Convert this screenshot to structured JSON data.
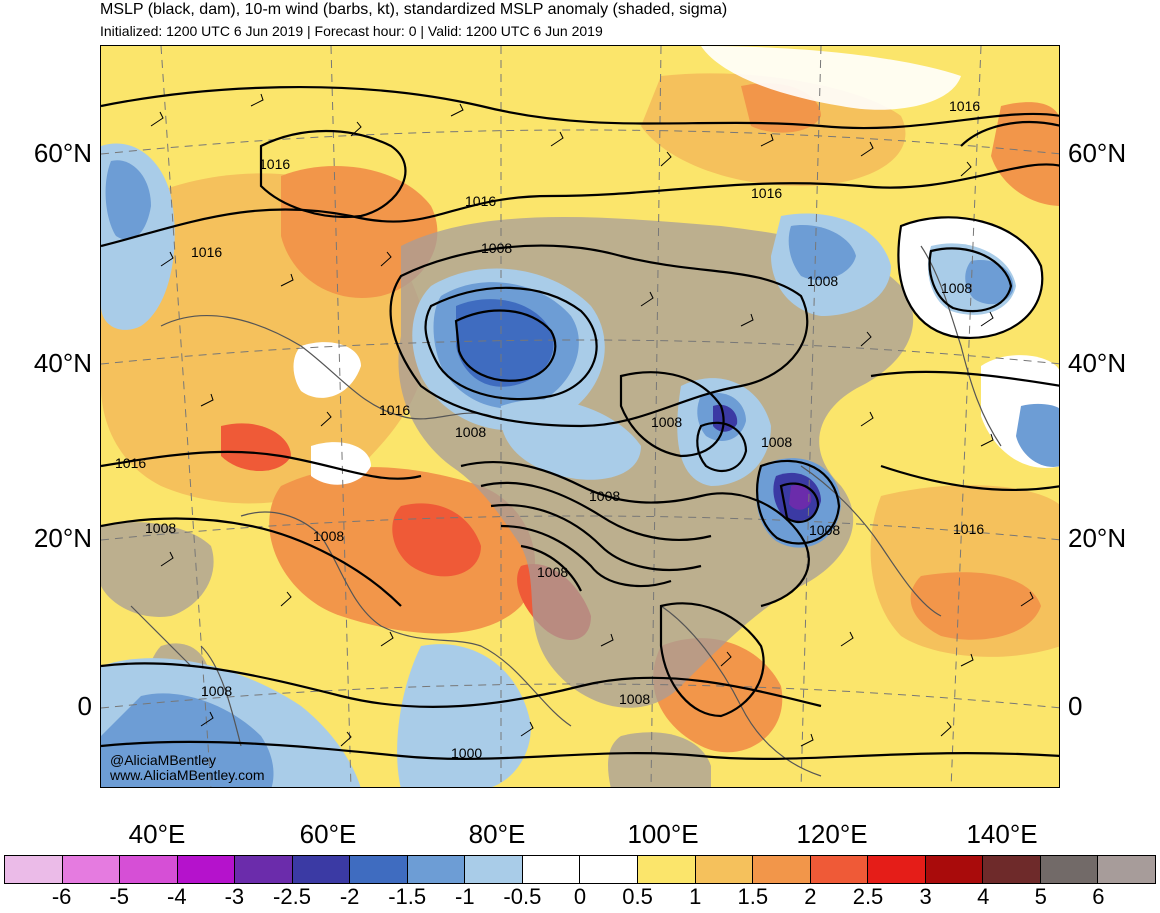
{
  "header": {
    "title": "MSLP (black, dam), 10-m wind (barbs, kt), standardized MSLP anomaly (shaded, sigma)",
    "subtitle": "Initialized: 1200 UTC 6 Jun 2019 | Forecast hour: 0 | Valid: 1200 UTC 6 Jun 2019"
  },
  "map": {
    "lat_labels": [
      "60°N",
      "40°N",
      "20°N",
      "0"
    ],
    "lon_labels": [
      "40°E",
      "60°E",
      "80°E",
      "100°E",
      "120°E",
      "140°E"
    ],
    "contour_labels": [
      "1016",
      "1016",
      "1016",
      "1016",
      "1016",
      "1016",
      "1016",
      "1016",
      "1008",
      "1008",
      "1008",
      "1008",
      "1008",
      "1008",
      "1008",
      "1008",
      "1008",
      "1008",
      "1008",
      "1008",
      "1008",
      "1000"
    ],
    "credit": [
      "@AliciaMBentley",
      "www.AliciaMBentley.com"
    ]
  },
  "colorbar": {
    "labels": [
      "-6",
      "-5",
      "-4",
      "-3",
      "-2.5",
      "-2",
      "-1.5",
      "-1",
      "-0.5",
      "0",
      "0.5",
      "1",
      "1.5",
      "2",
      "2.5",
      "3",
      "4",
      "5",
      "6"
    ],
    "colors": [
      "#ebbbe8",
      "#e57be0",
      "#d64fd6",
      "#b512cc",
      "#6b2cab",
      "#3b3aa4",
      "#3f6cc0",
      "#6d9dd5",
      "#a9cce8",
      "#ffffff",
      "#ffffff",
      "#fbe56b",
      "#f5c15c",
      "#f2964a",
      "#ef5a37",
      "#e51d18",
      "#a90b0b",
      "#6e2a2a",
      "#726a68",
      "#a79c9a"
    ]
  }
}
